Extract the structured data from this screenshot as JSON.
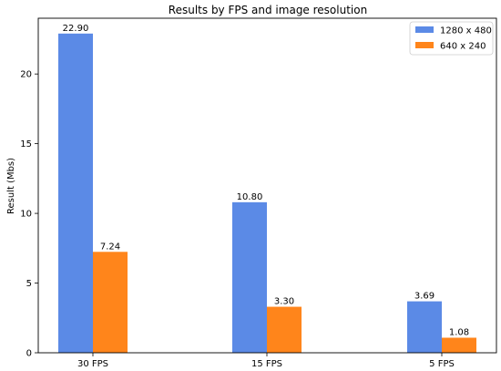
{
  "chart_data": {
    "type": "bar",
    "title": "Results by FPS and image resolution",
    "xlabel": "",
    "ylabel": "Result (Mbs)",
    "categories": [
      "30 FPS",
      "15 FPS",
      "5 FPS"
    ],
    "series": [
      {
        "name": "1280 x 480",
        "values": [
          22.9,
          10.8,
          3.69
        ],
        "labels": [
          "22.90",
          "10.80",
          "3.69"
        ],
        "color": "#5b8ae6"
      },
      {
        "name": "640 x 240",
        "values": [
          7.24,
          3.3,
          1.08
        ],
        "labels": [
          "7.24",
          "3.30",
          "1.08"
        ],
        "color": "#ff851b"
      }
    ],
    "yticks": [
      0,
      5,
      10,
      15,
      20
    ],
    "ylim": [
      0,
      24
    ],
    "grid": false,
    "legend": "top-right"
  }
}
